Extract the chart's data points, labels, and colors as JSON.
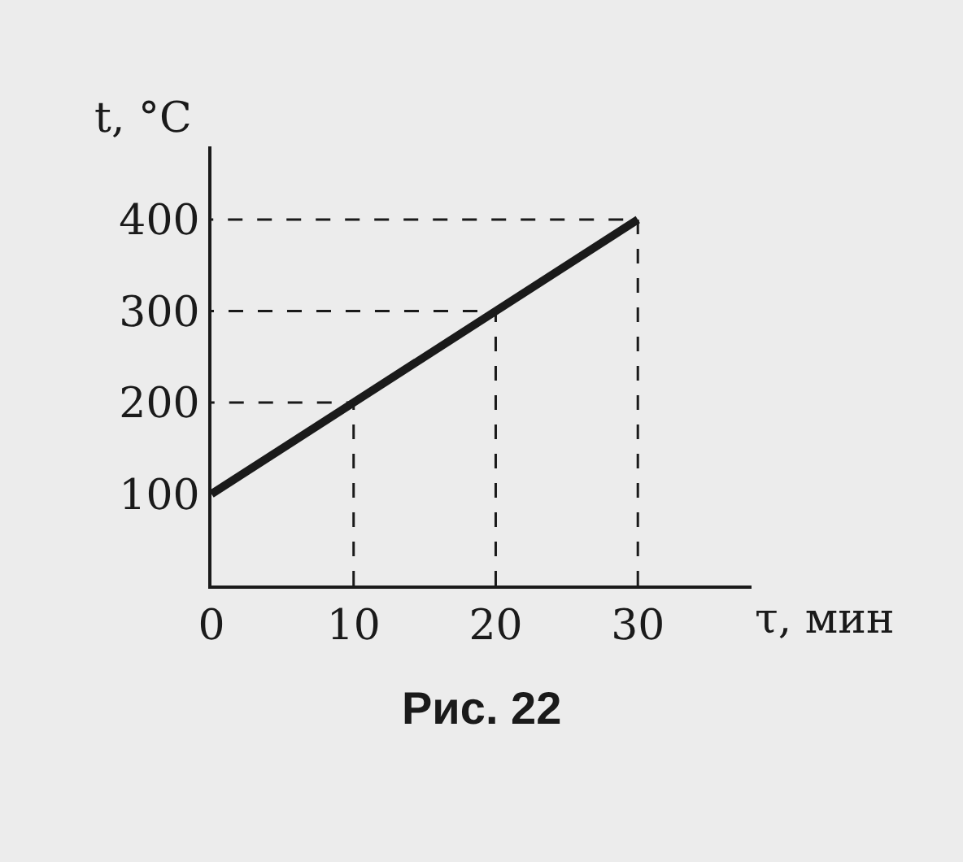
{
  "chart_data": {
    "type": "line",
    "xlabel": "τ, мин",
    "ylabel": "t, °C",
    "annotations": [
      "Рис. 22"
    ],
    "x": [
      0,
      30
    ],
    "series": [
      {
        "color": "#1a1a1a",
        "values": [
          100,
          400
        ]
      },
      {
        "color": "#1a1a1a",
        "x": [
          10,
          10,
          0
        ],
        "values": [
          0,
          200,
          200
        ],
        "line_style": "dashed"
      },
      {
        "color": "#1a1a1a",
        "x": [
          20,
          20,
          0
        ],
        "values": [
          0,
          300,
          300
        ],
        "line_style": "dashed"
      },
      {
        "color": "#1a1a1a",
        "x": [
          30,
          30,
          0
        ],
        "values": [
          0,
          400,
          400
        ],
        "line_style": "dashed"
      }
    ],
    "xlim": [
      0,
      38
    ],
    "ylim": [
      0,
      480
    ],
    "xticks": [
      0,
      10,
      20,
      30
    ],
    "yticks": [
      100,
      200,
      300,
      400
    ],
    "marker": "none",
    "line_style": "solid"
  }
}
